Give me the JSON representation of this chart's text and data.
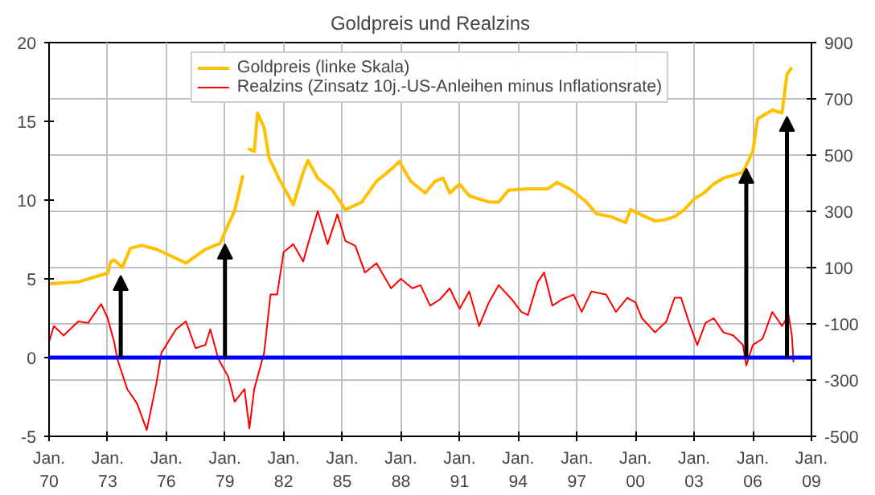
{
  "chart_data": {
    "type": "line",
    "title": "Goldpreis und Realzins",
    "xlim": [
      "1970-01",
      "2009-01"
    ],
    "xticks": [
      {
        "value": "1970-01",
        "label": "Jan.\n70"
      },
      {
        "value": "1973-01",
        "label": "Jan.\n73"
      },
      {
        "value": "1976-01",
        "label": "Jan.\n76"
      },
      {
        "value": "1979-01",
        "label": "Jan.\n79"
      },
      {
        "value": "1982-01",
        "label": "Jan.\n82"
      },
      {
        "value": "1985-01",
        "label": "Jan.\n85"
      },
      {
        "value": "1988-01",
        "label": "Jan.\n88"
      },
      {
        "value": "1991-01",
        "label": "Jan.\n91"
      },
      {
        "value": "1994-01",
        "label": "Jan.\n94"
      },
      {
        "value": "1997-01",
        "label": "Jan.\n97"
      },
      {
        "value": "2000-01",
        "label": "Jan.\n00"
      },
      {
        "value": "2003-01",
        "label": "Jan.\n03"
      },
      {
        "value": "2006-01",
        "label": "Jan.\n06"
      },
      {
        "value": "2009-01",
        "label": "Jan.\n09"
      }
    ],
    "ylim": [
      -5,
      20
    ],
    "yticks": [
      -5,
      0,
      5,
      10,
      15,
      20
    ],
    "y2lim": [
      -500,
      900
    ],
    "y2ticks": [
      -500,
      -300,
      -100,
      100,
      300,
      500,
      700,
      900
    ],
    "grid": true,
    "legend": "top",
    "series": [
      {
        "name": "Goldpreis (linke Skala)",
        "color": "#ffc000",
        "axis": "y2",
        "x": [
          "1970-01",
          "1971-07",
          "1972-07",
          "1973-01",
          "1973-03",
          "1973-05",
          "1973-10",
          "1974-03",
          "1974-10",
          "1975-07",
          "1976-07",
          "1977-01",
          "1978-01",
          "1978-10",
          "1979-01",
          "1979-07",
          "1979-12",
          "1980-01",
          "1980-03",
          "1980-07",
          "1980-09",
          "1981-01",
          "1981-04",
          "1981-10",
          "1982-04",
          "1982-07",
          "1983-01",
          "1983-04",
          "1983-10",
          "1984-07",
          "1985-03",
          "1986-01",
          "1986-10",
          "1987-07",
          "1987-12",
          "1988-07",
          "1989-04",
          "1989-10",
          "1990-03",
          "1990-07",
          "1991-01",
          "1991-07",
          "1992-07",
          "1993-01",
          "1993-07",
          "1994-07",
          "1995-07",
          "1996-01",
          "1996-10",
          "1997-07",
          "1998-01",
          "1998-10",
          "1999-07",
          "1999-10",
          "2000-07",
          "2001-01",
          "2001-07",
          "2002-01",
          "2002-07",
          "2003-01",
          "2003-07",
          "2004-01",
          "2004-07",
          "2005-01",
          "2005-07",
          "2006-01",
          "2006-04",
          "2006-07",
          "2007-01",
          "2007-07",
          "2007-10",
          "2008-01"
        ],
        "values": [
          42,
          49,
          70,
          80,
          122,
          127,
          101,
          169,
          179,
          165,
          133,
          116,
          165,
          186,
          228,
          302,
          428,
          null,
          523,
          513,
          650,
          597,
          492,
          418,
          355,
          323,
          439,
          481,
          418,
          375,
          306,
          333,
          407,
          449,
          477,
          407,
          365,
          407,
          418,
          365,
          397,
          355,
          333,
          333,
          375,
          380,
          380,
          403,
          375,
          333,
          291,
          281,
          260,
          306,
          281,
          266,
          270,
          281,
          306,
          344,
          365,
          397,
          418,
          428,
          439,
          513,
          629,
          639,
          660,
          650,
          787,
          812
        ]
      },
      {
        "name": "Realzins (Zinsatz 10j.-US-Anleihen minus Inflationsrate)",
        "color": "#ff0000",
        "x": [
          "1970-01",
          "1970-04",
          "1970-10",
          "1971-07",
          "1972-01",
          "1972-09",
          "1973-01",
          "1973-05",
          "1973-07",
          "1974-01",
          "1974-07",
          "1975-01",
          "1975-07",
          "1975-10",
          "1976-07",
          "1977-01",
          "1977-07",
          "1978-01",
          "1978-04",
          "1978-09",
          "1979-03",
          "1979-07",
          "1980-01",
          "1980-04",
          "1980-07",
          "1981-01",
          "1981-05",
          "1981-09",
          "1982-01",
          "1982-07",
          "1983-01",
          "1983-04",
          "1983-10",
          "1984-04",
          "1984-10",
          "1985-03",
          "1985-09",
          "1986-03",
          "1986-10",
          "1987-07",
          "1988-01",
          "1988-08",
          "1989-01",
          "1989-07",
          "1990-01",
          "1990-07",
          "1991-01",
          "1991-07",
          "1992-01",
          "1992-07",
          "1993-01",
          "1993-09",
          "1994-03",
          "1994-07",
          "1995-01",
          "1995-05",
          "1995-10",
          "1996-04",
          "1996-11",
          "1997-04",
          "1997-10",
          "1998-07",
          "1999-01",
          "1999-08",
          "2000-01",
          "2000-05",
          "2001-01",
          "2001-08",
          "2002-01",
          "2002-05",
          "2002-10",
          "2003-03",
          "2003-08",
          "2004-01",
          "2004-07",
          "2005-01",
          "2005-07",
          "2005-09",
          "2006-01",
          "2006-07",
          "2007-01",
          "2007-07",
          "2007-11",
          "2008-01",
          "2008-02"
        ],
        "values": [
          1.0,
          2.0,
          1.4,
          2.3,
          2.2,
          3.4,
          2.5,
          1.0,
          -0.1,
          -2.0,
          -2.9,
          -4.6,
          -1.6,
          0.3,
          1.8,
          2.3,
          0.6,
          0.8,
          1.8,
          -0.1,
          -1.2,
          -2.8,
          -2.0,
          -4.5,
          -2.0,
          0.3,
          4.0,
          4.0,
          6.7,
          7.2,
          6.1,
          7.2,
          9.3,
          7.2,
          9.1,
          7.4,
          7.1,
          5.4,
          6.0,
          4.4,
          5.0,
          4.4,
          4.6,
          3.3,
          3.7,
          4.4,
          3.1,
          4.2,
          2.0,
          3.5,
          4.6,
          3.7,
          2.9,
          2.7,
          4.8,
          5.4,
          3.3,
          3.7,
          4.0,
          2.9,
          4.2,
          4.0,
          2.9,
          3.8,
          3.5,
          2.5,
          1.6,
          2.3,
          3.8,
          3.8,
          2.2,
          0.8,
          2.2,
          2.5,
          1.6,
          1.4,
          0.8,
          -0.5,
          0.8,
          1.2,
          2.9,
          2.0,
          2.7,
          1.4,
          -0.3
        ]
      }
    ],
    "ref_lines": [
      {
        "axis": "y",
        "value": 0,
        "color": "#0000ff"
      }
    ]
  }
}
